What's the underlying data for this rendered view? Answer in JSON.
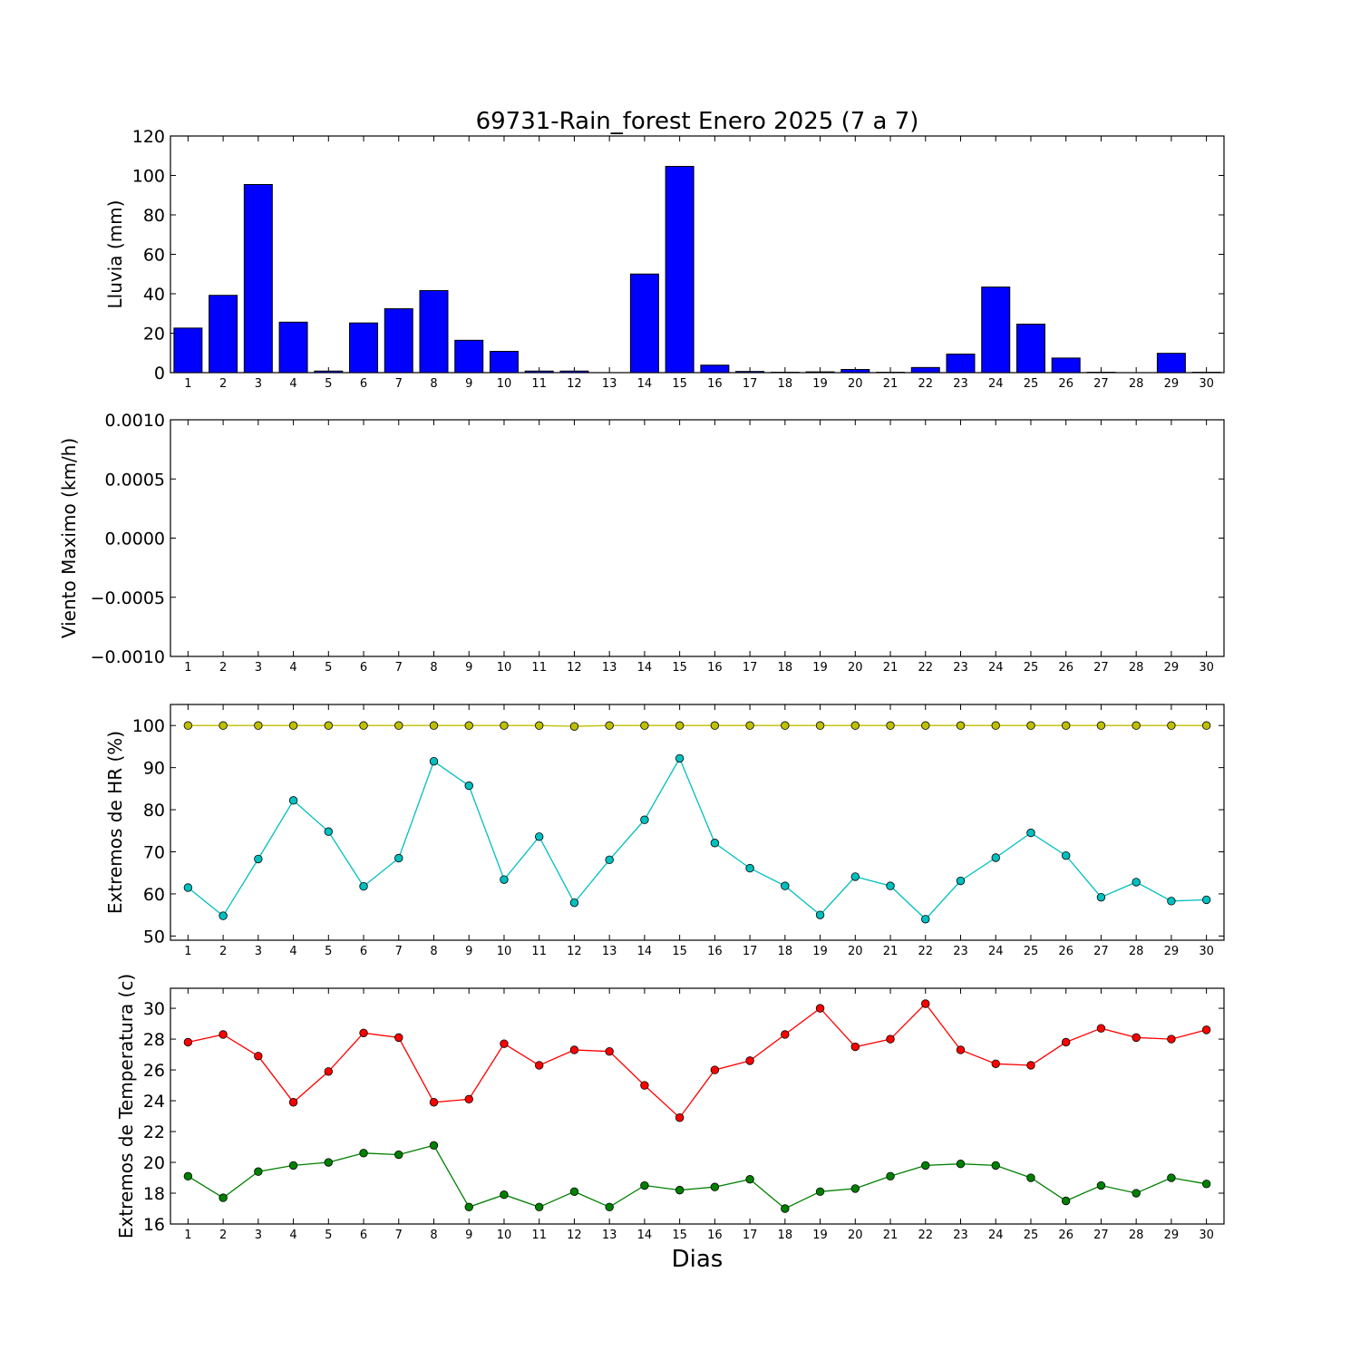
{
  "title": "69731-Rain_forest Enero 2025  (7 a 7)",
  "xlabel": "Dias",
  "days": [
    1,
    2,
    3,
    4,
    5,
    6,
    7,
    8,
    9,
    10,
    11,
    12,
    13,
    14,
    15,
    16,
    17,
    18,
    19,
    20,
    21,
    22,
    23,
    24,
    25,
    26,
    27,
    28,
    29,
    30
  ],
  "chart_data": [
    {
      "type": "bar",
      "ylabel": "Lluvia (mm)",
      "ylim": [
        0,
        120
      ],
      "yticks": [
        "0",
        "20",
        "40",
        "60",
        "80",
        "100",
        "120"
      ],
      "series": [
        {
          "color": "#0000ff",
          "values": [
            22.6,
            39.2,
            95.4,
            25.6,
            0.8,
            25.2,
            32.4,
            41.6,
            16.4,
            10.8,
            0.8,
            0.8,
            0,
            50.0,
            104.6,
            3.8,
            0.6,
            0.2,
            0.4,
            1.6,
            0.2,
            2.6,
            9.4,
            43.4,
            24.6,
            7.4,
            0.2,
            0,
            9.8,
            0.2
          ]
        }
      ]
    },
    {
      "type": "line",
      "ylabel": "Viento Maximo (km/h)",
      "ylim": [
        -0.001,
        0.001
      ],
      "yticks": [
        "−0.0010",
        "−0.0005",
        "0.0000",
        "0.0005",
        "0.0010"
      ],
      "series": []
    },
    {
      "type": "line",
      "ylabel": "Extremos de HR (%)",
      "ylim": [
        49,
        105
      ],
      "yticks": [
        "50",
        "60",
        "70",
        "80",
        "90",
        "100"
      ],
      "series": [
        {
          "color": "#bfbf00",
          "values": [
            100,
            100,
            100,
            100,
            100,
            100,
            100,
            100,
            100,
            100,
            100,
            99.8,
            100,
            100,
            100,
            100,
            100,
            100,
            100,
            100,
            100,
            100,
            100,
            100,
            100,
            100,
            100,
            100,
            100,
            100
          ]
        },
        {
          "color": "#00bfbf",
          "values": [
            61.5,
            54.8,
            68.3,
            82.2,
            74.8,
            61.8,
            68.5,
            91.5,
            85.7,
            63.4,
            73.6,
            57.9,
            68.1,
            77.6,
            92.2,
            72.1,
            66.1,
            61.9,
            55.0,
            64.1,
            61.9,
            54.0,
            63.1,
            68.6,
            74.5,
            69.1,
            59.2,
            62.8,
            58.3,
            58.6
          ]
        }
      ]
    },
    {
      "type": "line",
      "ylabel": "Extremos de Temperatura (c)",
      "ylim": [
        16,
        31.3
      ],
      "yticks": [
        "16",
        "18",
        "20",
        "22",
        "24",
        "26",
        "28",
        "30"
      ],
      "series": [
        {
          "color": "#ff0000",
          "values": [
            27.8,
            28.3,
            26.9,
            23.9,
            25.9,
            28.4,
            28.1,
            23.9,
            24.1,
            27.7,
            26.3,
            27.3,
            27.2,
            25.0,
            22.9,
            26.0,
            26.6,
            28.3,
            30.0,
            27.5,
            28.0,
            30.3,
            27.3,
            26.4,
            26.3,
            27.8,
            28.7,
            28.1,
            28.0,
            28.6
          ]
        },
        {
          "color": "#008000",
          "values": [
            19.1,
            17.7,
            19.4,
            19.8,
            20.0,
            20.6,
            20.5,
            21.1,
            17.1,
            17.9,
            17.1,
            18.1,
            17.1,
            18.5,
            18.2,
            18.4,
            18.9,
            17.0,
            18.1,
            18.3,
            19.1,
            19.8,
            19.9,
            19.8,
            19.0,
            17.5,
            18.5,
            18.0,
            19.0,
            18.6
          ]
        }
      ]
    }
  ]
}
